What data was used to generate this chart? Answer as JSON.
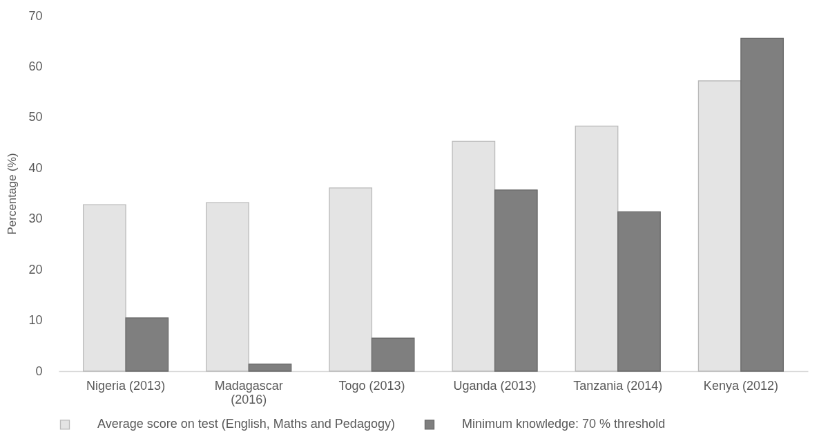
{
  "chart_data": {
    "type": "bar",
    "ylabel": "Percentage (%)",
    "categories": [
      "Nigeria (2013)",
      "Madagascar (2016)",
      "Togo (2013)",
      "Uganda (2013)",
      "Tanzania (2014)",
      "Kenya (2012)"
    ],
    "series": [
      {
        "name": "Average score on test (English, Maths and Pedagogy)",
        "color": "#e4e4e4",
        "values": [
          32.8,
          33.2,
          36.1,
          45.3,
          48.3,
          57.2
        ]
      },
      {
        "name": "Minimum knowledge: 70 % threshold",
        "color": "#7f7f7f",
        "values": [
          10.5,
          1.4,
          6.5,
          35.7,
          31.4,
          65.6
        ]
      }
    ],
    "ylim": [
      0,
      70
    ],
    "yticks": [
      0,
      10,
      20,
      30,
      40,
      50,
      60,
      70
    ],
    "grid": false,
    "legend": "bottom"
  }
}
